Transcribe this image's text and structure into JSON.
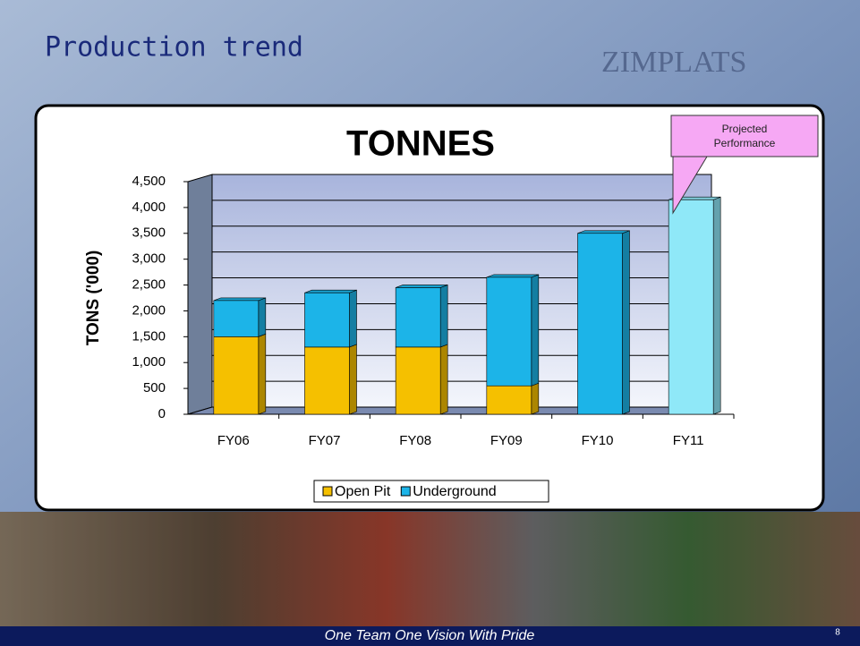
{
  "slide": {
    "title": "Production trend",
    "logo": "ZIMPLATS",
    "footer": "One Team One Vision With Pride",
    "page_number": "8",
    "callout": "Projected Performance"
  },
  "chart_data": {
    "type": "bar",
    "stacked": true,
    "title": "TONNES",
    "y_label": "TONS ('000)",
    "categories": [
      "FY06",
      "FY07",
      "FY08",
      "FY09",
      "FY10",
      "FY11"
    ],
    "series": [
      {
        "name": "Open Pit",
        "color": "#f5c000",
        "values": [
          1500,
          1300,
          1300,
          550,
          0,
          0
        ]
      },
      {
        "name": "Underground",
        "color": "#1cb4e8",
        "values": [
          700,
          1050,
          1150,
          2100,
          3500,
          4150
        ],
        "colors": [
          "#1cb4e8",
          "#1cb4e8",
          "#1cb4e8",
          "#1cb4e8",
          "#1cb4e8",
          "#8fe8f8"
        ]
      }
    ],
    "ylim": [
      0,
      4500
    ],
    "yticks": [
      0,
      500,
      {
        "value": 1000,
        "label": "1,000"
      },
      {
        "value": 1500,
        "label": "1,500"
      },
      {
        "value": 2000,
        "label": "2,000"
      },
      {
        "value": 2500,
        "label": "2,500"
      },
      {
        "value": 3000,
        "label": "3,000"
      },
      {
        "value": 3500,
        "label": "3,500"
      },
      {
        "value": 4000,
        "label": "4,000"
      },
      {
        "value": 4500,
        "label": "4,500"
      }
    ],
    "grid": true,
    "legend": "bottom"
  }
}
